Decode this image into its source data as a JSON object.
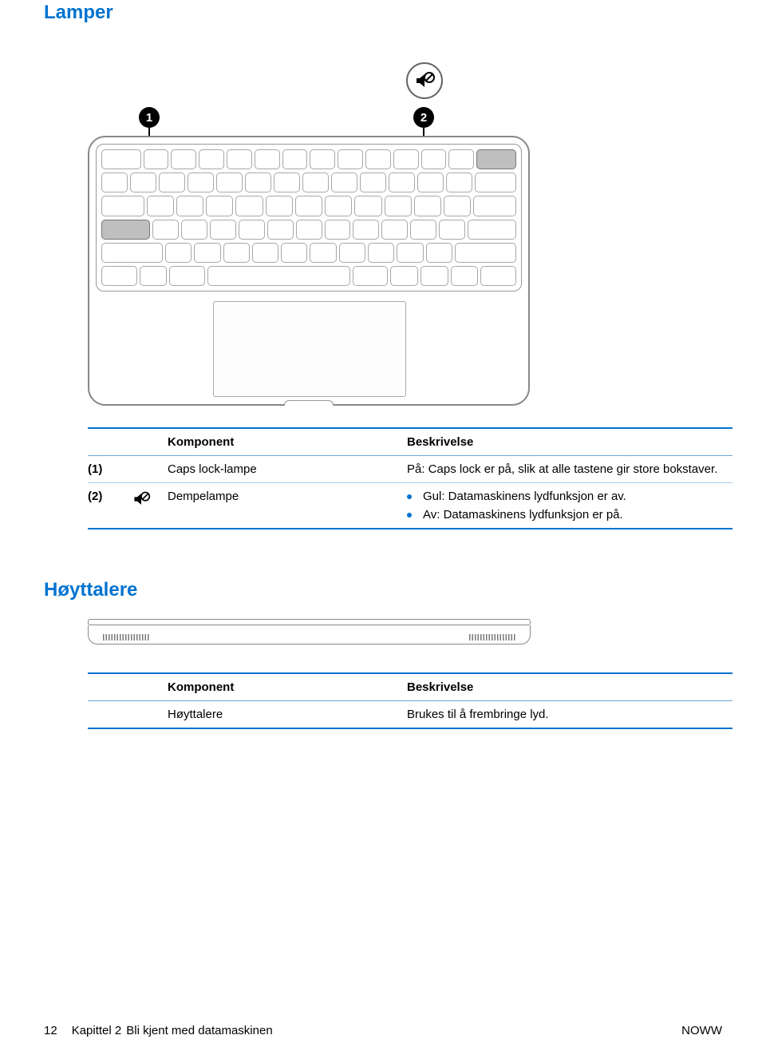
{
  "colors": {
    "accent_blue": "#0073cf",
    "rule_light": "#aac9e6",
    "key_outline": "#a8a8a8",
    "key_highlight_fill": "#bfbfbf",
    "text": "#000000",
    "background": "#ffffff"
  },
  "sections": {
    "lights": {
      "heading": "Lamper"
    },
    "speakers": {
      "heading": "Høyttalere"
    }
  },
  "keyboard_figure": {
    "callouts": {
      "1": "1",
      "2": "2"
    },
    "mute_icon_label": "mute-icon",
    "rows": [
      [
        1.6,
        1,
        1,
        1,
        1,
        1,
        1,
        1,
        1,
        1,
        1,
        1,
        1,
        1.6
      ],
      [
        1,
        1,
        1,
        1,
        1,
        1,
        1,
        1,
        1,
        1,
        1,
        1,
        1,
        1.6
      ],
      [
        1.6,
        1,
        1,
        1,
        1,
        1,
        1,
        1,
        1,
        1,
        1,
        1,
        1.6
      ],
      [
        1.9,
        1,
        1,
        1,
        1,
        1,
        1,
        1,
        1,
        1,
        1,
        1,
        1.9
      ],
      [
        2.4,
        1,
        1,
        1,
        1,
        1,
        1,
        1,
        1,
        1,
        1,
        2.4
      ],
      [
        1.3,
        1,
        1.3,
        5.4,
        1.3,
        1,
        1,
        1,
        1.3
      ]
    ],
    "highlighted_keys": [
      {
        "row": 0,
        "col": 13,
        "label": "esc"
      },
      {
        "row": 3,
        "col": 0,
        "label": "caps lock"
      }
    ]
  },
  "lights_table": {
    "headers": {
      "component": "Komponent",
      "description": "Beskrivelse"
    },
    "rows": [
      {
        "num": "(1)",
        "icon": null,
        "name": "Caps lock-lampe",
        "desc_plain": "På: Caps lock er på, slik at alle tastene gir store bokstaver."
      },
      {
        "num": "(2)",
        "icon": "mute-icon",
        "name": "Dempelampe",
        "desc_bullets": [
          "Gul: Datamaskinens lydfunksjon er av.",
          "Av: Datamaskinens lydfunksjon er på."
        ]
      }
    ]
  },
  "speakers_table": {
    "headers": {
      "component": "Komponent",
      "description": "Beskrivelse"
    },
    "rows": [
      {
        "num": "",
        "icon": null,
        "name": "Høyttalere",
        "desc_plain": "Brukes til å frembringe lyd."
      }
    ]
  },
  "footer": {
    "page_number": "12",
    "chapter_ref": "Kapittel 2",
    "chapter_title": "Bli kjent med datamaskinen",
    "right_marker": "NOWW"
  }
}
